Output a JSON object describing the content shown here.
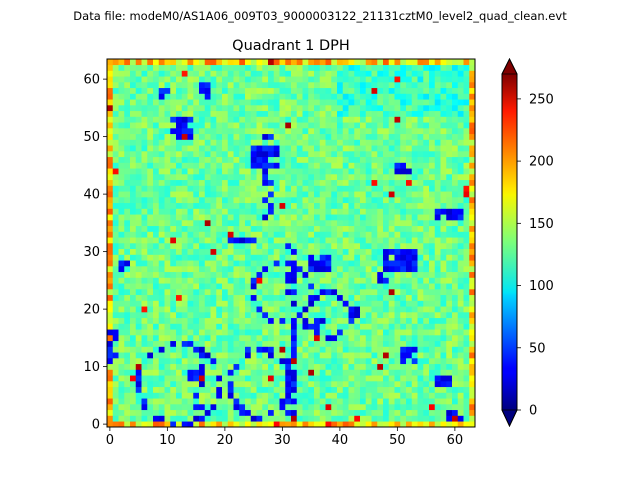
{
  "suptitle": "Data file: modeM0/AS1A06_009T03_9000003122_21131cztM0_level2_quad_clean.evt",
  "chart_data": {
    "type": "heatmap",
    "title": "Quadrant 1 DPH",
    "colormap": "jet",
    "grid_size": [
      64,
      64
    ],
    "xlim": [
      -0.5,
      63.5
    ],
    "ylim": [
      -0.5,
      63.5
    ],
    "x_ticks": [
      0,
      10,
      20,
      30,
      40,
      50,
      60
    ],
    "y_ticks": [
      0,
      10,
      20,
      30,
      40,
      50,
      60
    ],
    "xlabel": "",
    "ylabel": "",
    "color_range": [
      0,
      270
    ],
    "colorbar_ticks": [
      0,
      50,
      100,
      150,
      200,
      250
    ],
    "colorbar_extend": "both",
    "typical_value": 130,
    "edge_value": 165,
    "hot_value": 230,
    "low_value": 20,
    "low_count_regions": [
      {
        "x": [
          11,
          14
        ],
        "y": [
          50,
          53
        ]
      },
      {
        "x": [
          16,
          17
        ],
        "y": [
          57,
          59
        ]
      },
      {
        "x": [
          25,
          29
        ],
        "y": [
          45,
          48
        ]
      },
      {
        "x": [
          50,
          52
        ],
        "y": [
          44,
          45
        ]
      },
      {
        "x": [
          35,
          38
        ],
        "y": [
          27,
          29
        ]
      },
      {
        "x": [
          48,
          53
        ],
        "y": [
          27,
          30
        ]
      },
      {
        "x": [
          57,
          61
        ],
        "y": [
          36,
          37
        ]
      },
      {
        "x": [
          21,
          25
        ],
        "y": [
          32,
          32
        ]
      },
      {
        "x": [
          51,
          53
        ],
        "y": [
          11,
          13
        ]
      },
      {
        "x": [
          57,
          59
        ],
        "y": [
          7,
          8
        ]
      },
      {
        "x": [
          59,
          61
        ],
        "y": [
          1,
          2
        ]
      },
      {
        "x": [
          0,
          1
        ],
        "y": [
          11,
          16
        ]
      },
      {
        "x": [
          2,
          3
        ],
        "y": [
          27,
          28
        ]
      },
      {
        "x": [
          42,
          43
        ],
        "y": [
          19,
          20
        ]
      },
      {
        "x": [
          14,
          16
        ],
        "y": [
          8,
          9
        ]
      },
      {
        "x": [
          9,
          10
        ],
        "y": [
          57,
          58
        ]
      },
      {
        "x": [
          36,
          37
        ],
        "y": [
          17,
          18
        ]
      },
      {
        "x": [
          47,
          48
        ],
        "y": [
          25,
          26
        ]
      }
    ],
    "low_count_arcs": [
      {
        "cx": 12,
        "cy": 7,
        "rx": 7,
        "ry": 7
      },
      {
        "cx": 30,
        "cy": 23,
        "rx": 5,
        "ry": 5
      },
      {
        "cx": 38,
        "cy": 19,
        "rx": 4,
        "ry": 4
      },
      {
        "cx": 26,
        "cy": 7,
        "rx": 5,
        "ry": 6
      }
    ],
    "low_count_lines": [
      {
        "x": [
          31,
          32
        ],
        "y": [
          2,
          31
        ]
      },
      {
        "x": [
          15,
          16
        ],
        "y": [
          2,
          14
        ]
      },
      {
        "x": [
          27,
          28
        ],
        "y": [
          36,
          50
        ]
      }
    ]
  }
}
